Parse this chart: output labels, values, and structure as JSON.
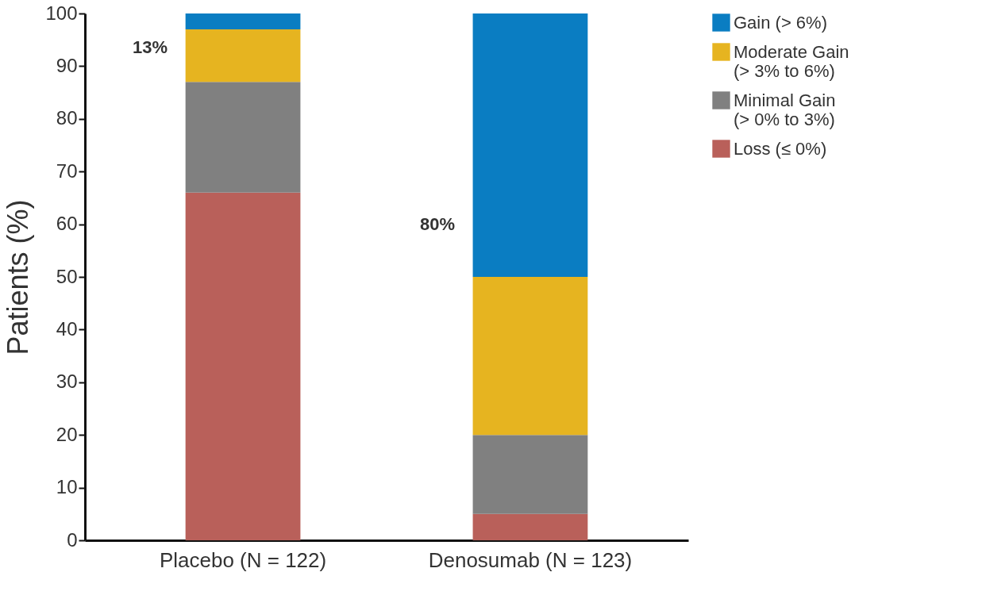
{
  "chart_data": {
    "type": "bar",
    "stacked": true,
    "ylabel": "Patients (%)",
    "categories": [
      "Placebo (N = 122)",
      "Denosumab (N = 123)"
    ],
    "series": [
      {
        "name": "Loss (≤ 0%)",
        "color": "#b9605a",
        "values": [
          66,
          5
        ]
      },
      {
        "name": "Minimal Gain (> 0% to 3%)",
        "color": "#808080",
        "values": [
          21,
          15
        ]
      },
      {
        "name": "Moderate Gain (> 3% to 6%)",
        "color": "#e6b420",
        "values": [
          10,
          30
        ]
      },
      {
        "name": "Gain (> 6%)",
        "color": "#0a7dc2",
        "values": [
          3,
          50
        ]
      }
    ],
    "ylim": [
      0,
      100
    ],
    "yticks": [
      0,
      10,
      20,
      30,
      40,
      50,
      60,
      70,
      80,
      90,
      100
    ],
    "grid": false,
    "legend": "top right",
    "annotations": [
      "13%",
      "80%"
    ]
  }
}
